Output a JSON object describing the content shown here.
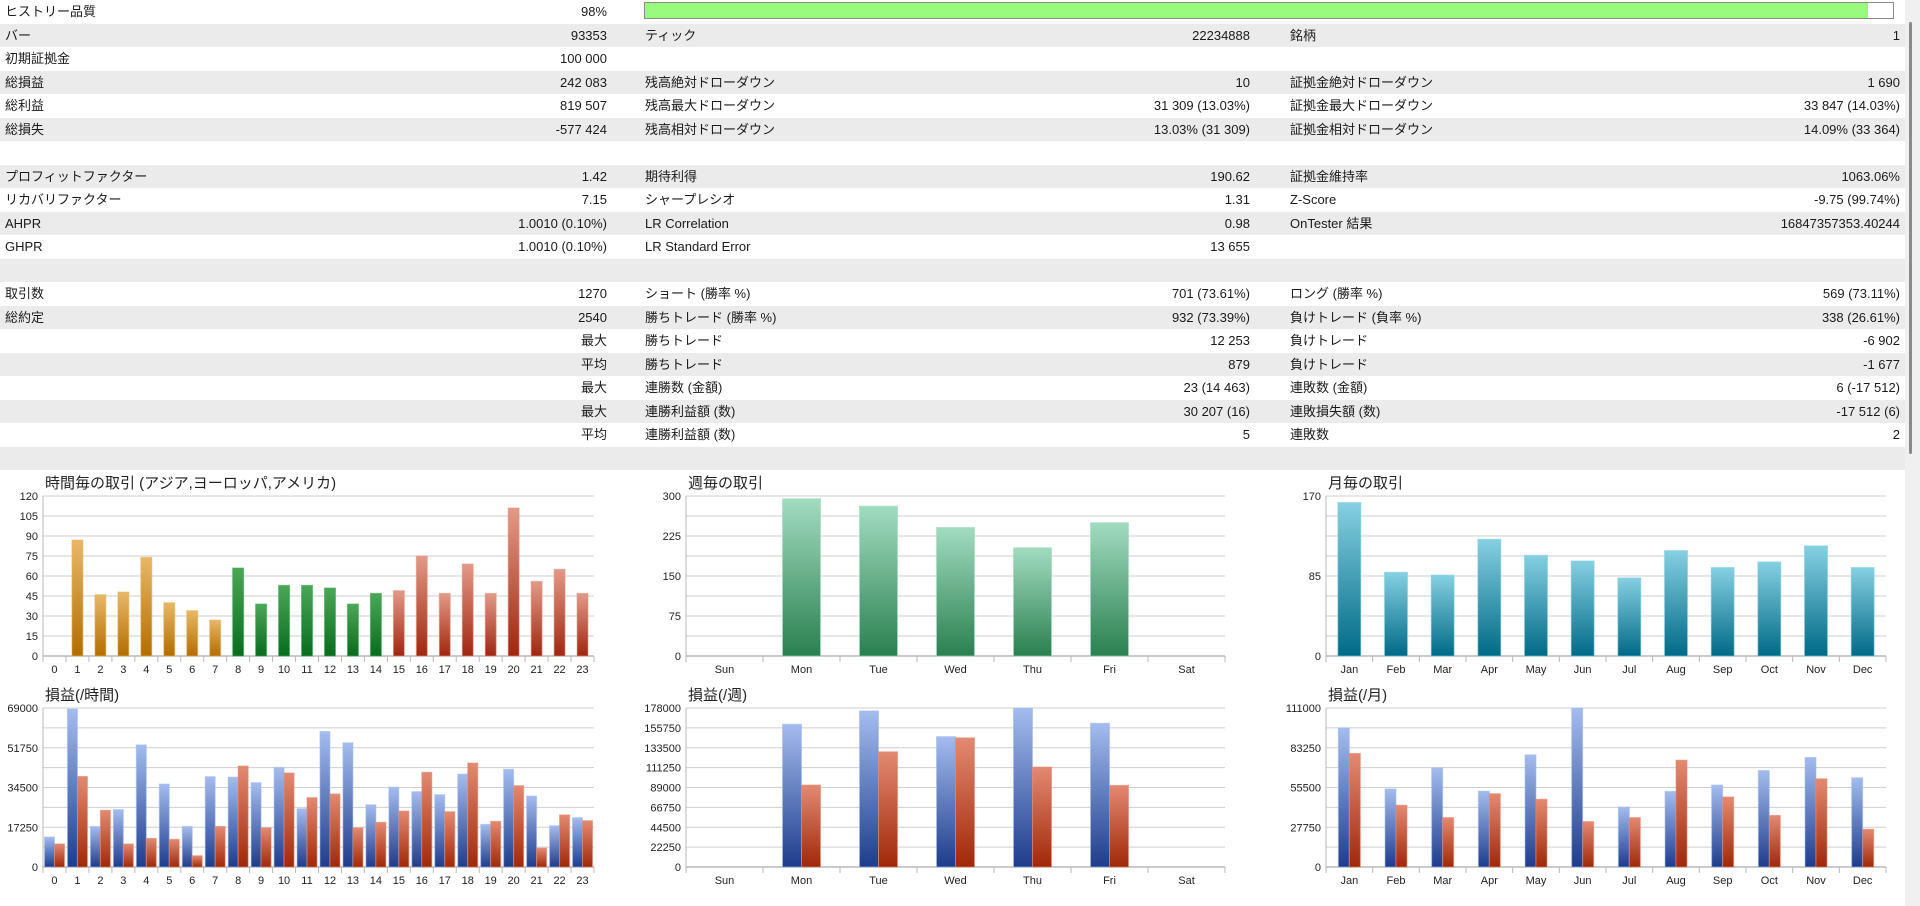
{
  "history_quality": {
    "label": "ヒストリー品質",
    "value": "98%",
    "fill_percent": 98,
    "bar_color": "#98fb7e"
  },
  "rows": [
    {
      "c1l": "バー",
      "c1v": "93353",
      "c2l": "ティック",
      "c2v": "22234888",
      "c3l": "銘柄",
      "c3v": "1"
    },
    {
      "c1l": "初期証拠金",
      "c1v": "100 000",
      "c2l": "",
      "c2v": "",
      "c3l": "",
      "c3v": ""
    },
    {
      "c1l": "総損益",
      "c1v": "242 083",
      "c2l": "残高絶対ドローダウン",
      "c2v": "10",
      "c3l": "証拠金絶対ドローダウン",
      "c3v": "1 690"
    },
    {
      "c1l": "総利益",
      "c1v": "819 507",
      "c2l": "残高最大ドローダウン",
      "c2v": "31 309 (13.03%)",
      "c3l": "証拠金最大ドローダウン",
      "c3v": "33 847 (14.03%)"
    },
    {
      "c1l": "総損失",
      "c1v": "-577 424",
      "c2l": "残高相対ドローダウン",
      "c2v": "13.03% (31 309)",
      "c3l": "証拠金相対ドローダウン",
      "c3v": "14.09% (33 364)"
    },
    {
      "c1l": "",
      "c1v": "",
      "c2l": "",
      "c2v": "",
      "c3l": "",
      "c3v": ""
    },
    {
      "c1l": "プロフィットファクター",
      "c1v": "1.42",
      "c2l": "期待利得",
      "c2v": "190.62",
      "c3l": "証拠金維持率",
      "c3v": "1063.06%"
    },
    {
      "c1l": "リカバリファクター",
      "c1v": "7.15",
      "c2l": "シャープレシオ",
      "c2v": "1.31",
      "c3l": "Z-Score",
      "c3v": "-9.75 (99.74%)"
    },
    {
      "c1l": "AHPR",
      "c1v": "1.0010 (0.10%)",
      "c2l": "LR Correlation",
      "c2v": "0.98",
      "c3l": "OnTester 結果",
      "c3v": "16847357353.40244"
    },
    {
      "c1l": "GHPR",
      "c1v": "1.0010 (0.10%)",
      "c2l": "LR Standard Error",
      "c2v": "13 655",
      "c3l": "",
      "c3v": ""
    },
    {
      "c1l": "",
      "c1v": "",
      "c2l": "",
      "c2v": "",
      "c3l": "",
      "c3v": ""
    },
    {
      "c1l": "取引数",
      "c1v": "1270",
      "c2l": "ショート (勝率 %)",
      "c2v": "701 (73.61%)",
      "c3l": "ロング (勝率 %)",
      "c3v": "569 (73.11%)"
    },
    {
      "c1l": "総約定",
      "c1v": "2540",
      "c2l": "勝ちトレード (勝率 %)",
      "c2v": "932 (73.39%)",
      "c3l": "負けトレード (負率 %)",
      "c3v": "338 (26.61%)"
    },
    {
      "c1l": "",
      "c1v": "最大",
      "c2l": "勝ちトレード",
      "c2v": "12 253",
      "c3l": "負けトレード",
      "c3v": "-6 902"
    },
    {
      "c1l": "",
      "c1v": "平均",
      "c2l": "勝ちトレード",
      "c2v": "879",
      "c3l": "負けトレード",
      "c3v": "-1 677"
    },
    {
      "c1l": "",
      "c1v": "最大",
      "c2l": "連勝数 (金額)",
      "c2v": "23 (14 463)",
      "c3l": "連敗数 (金額)",
      "c3v": "6 (-17 512)"
    },
    {
      "c1l": "",
      "c1v": "最大",
      "c2l": "連勝利益額 (数)",
      "c2v": "30 207 (16)",
      "c3l": "連敗損失額 (数)",
      "c3v": "-17 512 (6)"
    },
    {
      "c1l": "",
      "c1v": "平均",
      "c2l": "連勝利益額 (数)",
      "c2v": "5",
      "c3l": "連敗数",
      "c3v": "2"
    },
    {
      "c1l": "",
      "c1v": "",
      "c2l": "",
      "c2v": "",
      "c3l": "",
      "c3v": ""
    }
  ],
  "chart_data": [
    {
      "id": "hourly-trades",
      "type": "bar",
      "title": "時間毎の取引 (アジア,ヨーロッパ,アメリカ)",
      "categories": [
        "0",
        "1",
        "2",
        "3",
        "4",
        "5",
        "6",
        "7",
        "8",
        "9",
        "10",
        "11",
        "12",
        "13",
        "14",
        "15",
        "16",
        "17",
        "18",
        "19",
        "20",
        "21",
        "22",
        "23"
      ],
      "values": [
        0,
        87,
        46,
        48,
        74,
        40,
        34,
        27,
        66,
        39,
        53,
        53,
        51,
        39,
        47,
        49,
        75,
        47,
        69,
        47,
        111,
        56,
        65,
        47
      ],
      "ylim": [
        0,
        120
      ],
      "yticks": [
        "0",
        "15",
        "30",
        "45",
        "60",
        "75",
        "90",
        "105",
        "120"
      ],
      "session_colors": [
        {
          "range": [
            0,
            7
          ],
          "top": "#e8b868",
          "bottom": "#b46c00"
        },
        {
          "range": [
            8,
            14
          ],
          "top": "#4aa858",
          "bottom": "#086c1c"
        },
        {
          "range": [
            15,
            23
          ],
          "top": "#e39a88",
          "bottom": "#a0260e"
        }
      ]
    },
    {
      "id": "hourly-pnl",
      "type": "bar",
      "title": "損益(/時間)",
      "categories": [
        "0",
        "1",
        "2",
        "3",
        "4",
        "5",
        "6",
        "7",
        "8",
        "9",
        "10",
        "11",
        "12",
        "13",
        "14",
        "15",
        "16",
        "17",
        "18",
        "19",
        "20",
        "21",
        "22",
        "23"
      ],
      "series": [
        {
          "values": [
            13000,
            68500,
            17600,
            24900,
            53000,
            36000,
            17600,
            39200,
            39000,
            36600,
            43200,
            25300,
            58800,
            53900,
            27000,
            34600,
            32700,
            31400,
            40300,
            18500,
            42400,
            30800,
            17900,
            21400
          ],
          "top": "#a4bcee",
          "bottom": "#1e3c8c"
        },
        {
          "values": [
            10000,
            39300,
            24600,
            10000,
            12400,
            12000,
            4900,
            17600,
            43800,
            17000,
            40800,
            30100,
            31700,
            17000,
            19400,
            24300,
            41100,
            24000,
            45100,
            19800,
            35300,
            8200,
            22600,
            20100
          ],
          "top": "#e38a72",
          "bottom": "#a02808"
        }
      ],
      "ylim": [
        0,
        69000
      ],
      "yticks": [
        "0",
        "",
        "17250",
        "",
        "34500",
        "",
        "51750",
        "",
        "69000"
      ]
    },
    {
      "id": "weekly-trades",
      "type": "bar",
      "title": "週毎の取引",
      "categories": [
        "Sun",
        "Mon",
        "Tue",
        "Wed",
        "Thu",
        "Fri",
        "Sat"
      ],
      "values": [
        0,
        295,
        281,
        241,
        203,
        250,
        0
      ],
      "ylim": [
        0,
        300
      ],
      "yticks": [
        "0",
        "",
        "75",
        "",
        "150",
        "",
        "225",
        "",
        "300"
      ],
      "colors": {
        "top": "#a2dcc0",
        "bottom": "#2a8050"
      }
    },
    {
      "id": "weekly-pnl",
      "type": "bar",
      "title": "損益(/週)",
      "categories": [
        "Sun",
        "Mon",
        "Tue",
        "Wed",
        "Thu",
        "Fri",
        "Sat"
      ],
      "series": [
        {
          "values": [
            0,
            159800,
            174700,
            146000,
            178000,
            160900,
            0
          ],
          "top": "#a4bcee",
          "bottom": "#1e3c8c"
        },
        {
          "values": [
            0,
            91800,
            129000,
            144600,
            111900,
            91400,
            0
          ],
          "top": "#e38a72",
          "bottom": "#a02808"
        }
      ],
      "ylim": [
        0,
        178000
      ],
      "yticks": [
        "0",
        "22250",
        "44500",
        "66750",
        "89000",
        "111250",
        "133500",
        "155750",
        "178000"
      ]
    },
    {
      "id": "monthly-trades",
      "type": "bar",
      "title": "月毎の取引",
      "categories": [
        "Jan",
        "Feb",
        "Mar",
        "Apr",
        "May",
        "Jun",
        "Jul",
        "Aug",
        "Sep",
        "Oct",
        "Nov",
        "Dec"
      ],
      "values": [
        163,
        89,
        86,
        124,
        107,
        101,
        83,
        112,
        94,
        100,
        117,
        94
      ],
      "ylim": [
        0,
        170
      ],
      "yticks": [
        "0",
        "",
        "",
        "",
        "85",
        "",
        "",
        "",
        "170"
      ],
      "colors": {
        "top": "#86d0e2",
        "bottom": "#006a86"
      }
    },
    {
      "id": "monthly-pnl",
      "type": "bar",
      "title": "損益(/月)",
      "categories": [
        "Jan",
        "Feb",
        "Mar",
        "Apr",
        "May",
        "Jun",
        "Jul",
        "Aug",
        "Sep",
        "Oct",
        "Nov",
        "Dec"
      ],
      "series": [
        {
          "values": [
            97100,
            54500,
            69300,
            53000,
            78300,
            111000,
            41900,
            52800,
            57200,
            67400,
            76500,
            62300
          ],
          "top": "#a4bcee",
          "bottom": "#1e3c8c"
        },
        {
          "values": [
            79300,
            43100,
            34500,
            51200,
            47300,
            31700,
            34500,
            74600,
            48900,
            36000,
            61600,
            26400
          ],
          "top": "#e38a72",
          "bottom": "#a02808"
        }
      ],
      "ylim": [
        0,
        111000
      ],
      "yticks": [
        "0",
        "",
        "27750",
        "",
        "55500",
        "",
        "83250",
        "",
        "111000"
      ]
    }
  ]
}
